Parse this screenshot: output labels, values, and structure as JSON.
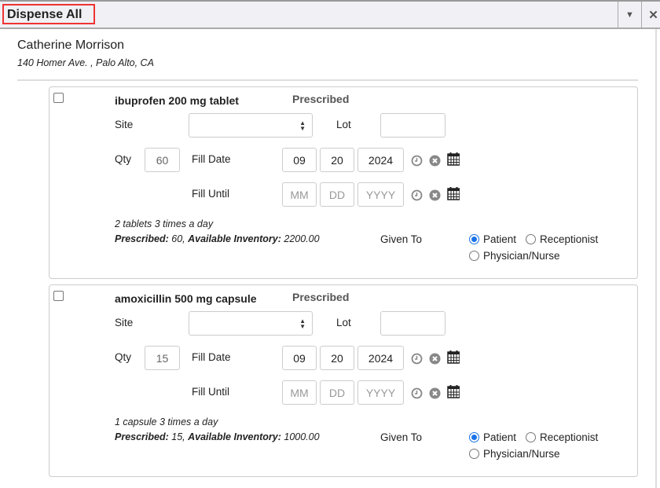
{
  "header": {
    "title": "Dispense All",
    "menu_icon": "caret-down-icon",
    "close_icon": "close-icon"
  },
  "patient": {
    "name": "Catherine Morrison",
    "address": "140 Homer Ave. , Palo Alto, CA"
  },
  "labels": {
    "prescribed": "Prescribed",
    "site": "Site",
    "lot": "Lot",
    "qty": "Qty",
    "fill_date": "Fill Date",
    "fill_until": "Fill Until",
    "given_to": "Given To",
    "prescribed_prefix": "Prescribed:",
    "inventory_prefix": "Available Inventory:",
    "mm": "MM",
    "dd": "DD",
    "yyyy": "YYYY",
    "patient": "Patient",
    "receptionist": "Receptionist",
    "physician": "Physician/Nurse"
  },
  "medications": [
    {
      "name": "ibuprofen 200 mg tablet",
      "qty": "60",
      "fill_month": "09",
      "fill_day": "20",
      "fill_year": "2024",
      "sig": "2 tablets 3 times a day",
      "prescribed": " 60,",
      "inventory": " 2200.00",
      "given_to": "Patient",
      "checked": false
    },
    {
      "name": "amoxicillin 500 mg capsule",
      "qty": "15",
      "fill_month": "09",
      "fill_day": "20",
      "fill_year": "2024",
      "sig": "1 capsule 3 times a day",
      "prescribed": " 15,",
      "inventory": " 1000.00",
      "given_to": "Patient",
      "checked": false
    }
  ],
  "colors": {
    "accent": "#1a73e8",
    "title_border": "#ee3333"
  }
}
